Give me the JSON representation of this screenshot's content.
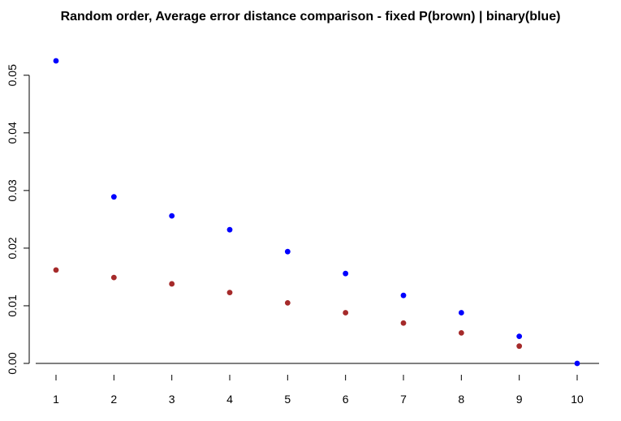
{
  "chart_data": {
    "type": "scatter",
    "title": "Random order, Average error distance comparison - fixed P(brown) | binary(blue)",
    "xlabel": "",
    "ylabel": "",
    "x_ticks": [
      "1",
      "2",
      "3",
      "4",
      "5",
      "6",
      "7",
      "8",
      "9",
      "10"
    ],
    "y_ticks": [
      "0.00",
      "0.01",
      "0.02",
      "0.03",
      "0.04",
      "0.05"
    ],
    "xlim": [
      1,
      10
    ],
    "ylim": [
      0,
      0.0525
    ],
    "grid": false,
    "series": [
      {
        "color": "#0000ff",
        "x": [
          1,
          2,
          3,
          4,
          5,
          6,
          7,
          8,
          9,
          10
        ],
        "y": [
          0.0525,
          0.0289,
          0.0256,
          0.0232,
          0.0194,
          0.0156,
          0.0118,
          0.0088,
          0.0047,
          0.0
        ]
      },
      {
        "color": "#a52a2a",
        "x": [
          1,
          2,
          3,
          4,
          5,
          6,
          7,
          8,
          9
        ],
        "y": [
          0.0162,
          0.0149,
          0.0138,
          0.0123,
          0.0105,
          0.0088,
          0.007,
          0.0053,
          0.003
        ]
      }
    ]
  }
}
